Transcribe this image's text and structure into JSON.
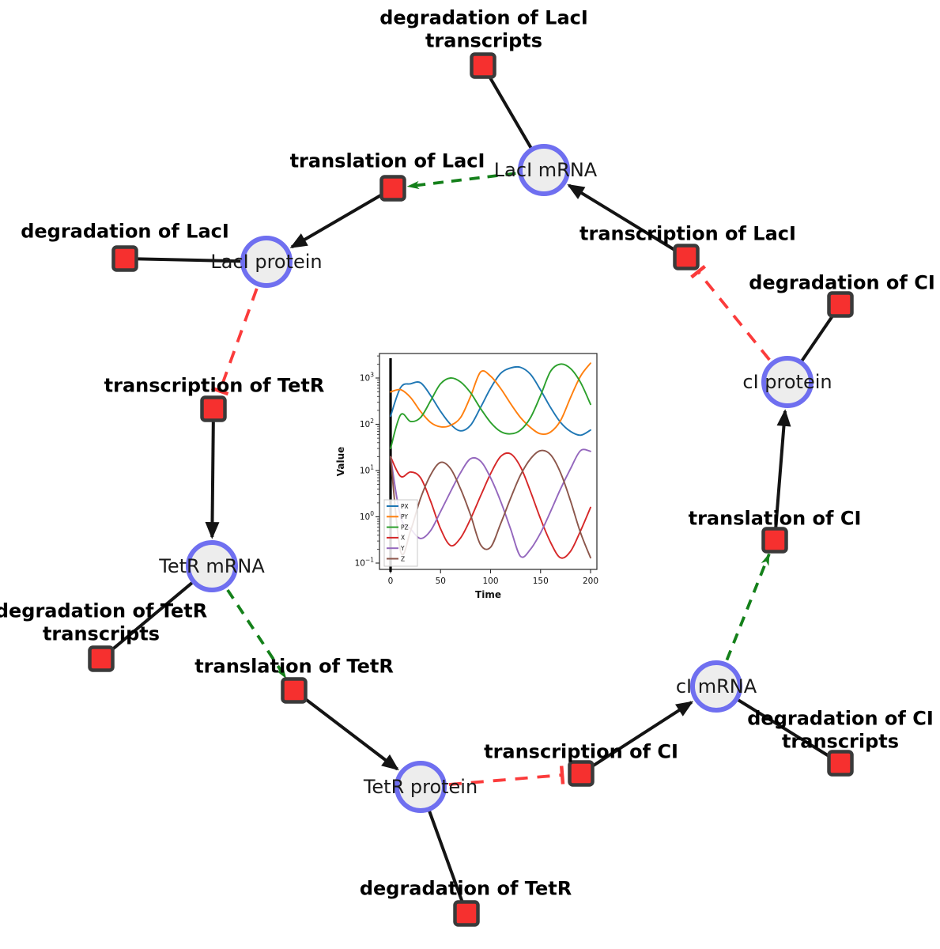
{
  "colors": {
    "node_fill": "#ededed",
    "node_border": "#6f6ff0",
    "reaction_fill": "#f6302f",
    "reaction_border": "#3a3a3a",
    "activation": "#14801a",
    "inhibition": "#fb3b3b",
    "edge_black": "#141414"
  },
  "diagram": {
    "species": [
      {
        "label": "LacI mRNA"
      },
      {
        "label": "LacI protein"
      },
      {
        "label": "TetR mRNA"
      },
      {
        "label": "TetR protein"
      },
      {
        "label": "cI mRNA"
      },
      {
        "label": "cI protein"
      }
    ],
    "reactions": [
      {
        "label": "degradation of LacI\ntranscripts"
      },
      {
        "label": "translation of LacI"
      },
      {
        "label": "transcription of LacI"
      },
      {
        "label": "degradation of LacI"
      },
      {
        "label": "degradation of CI"
      },
      {
        "label": "transcription of TetR"
      },
      {
        "label": "translation of CI"
      },
      {
        "label": "degradation of TetR\ntranscripts"
      },
      {
        "label": "translation of TetR"
      },
      {
        "label": "degradation of CI\ntranscripts"
      },
      {
        "label": "transcription of CI"
      },
      {
        "label": "degradation of TetR"
      }
    ]
  },
  "chart_data": {
    "type": "line",
    "title": "",
    "xlabel": "Time",
    "ylabel": "Value",
    "x_ticks": [
      0,
      50,
      100,
      150,
      200
    ],
    "y_scale": "log",
    "y_tick_exponents": [
      -1,
      0,
      1,
      2,
      3
    ],
    "xlim": [
      -11,
      206
    ],
    "ylim": [
      0.073,
      3400
    ],
    "vline_x": 0,
    "legend_position": "lower left",
    "x": [
      0,
      10,
      20,
      30,
      40,
      50,
      60,
      70,
      80,
      90,
      100,
      110,
      120,
      130,
      140,
      150,
      160,
      170,
      180,
      190,
      200
    ],
    "series": [
      {
        "name": "PX",
        "color": "#1f77b4",
        "values": [
          150,
          620,
          750,
          790,
          420,
          190,
          100,
          72,
          95,
          230,
          600,
          1250,
          1650,
          1700,
          1200,
          550,
          230,
          110,
          70,
          58,
          75
        ]
      },
      {
        "name": "PY",
        "color": "#ff7f0e",
        "values": [
          500,
          560,
          380,
          190,
          110,
          88,
          95,
          140,
          400,
          1350,
          1100,
          600,
          280,
          140,
          85,
          62,
          68,
          120,
          380,
          1100,
          2100
        ]
      },
      {
        "name": "PZ",
        "color": "#2ca02c",
        "values": [
          30,
          160,
          115,
          140,
          320,
          750,
          1000,
          820,
          480,
          220,
          110,
          70,
          62,
          75,
          140,
          420,
          1400,
          2000,
          1600,
          800,
          270
        ]
      },
      {
        "name": "X",
        "color": "#d62728",
        "values": [
          20,
          7.5,
          9.3,
          7.0,
          2.2,
          0.55,
          0.24,
          0.35,
          0.9,
          2.8,
          8.5,
          20,
          23,
          12,
          3.5,
          0.9,
          0.28,
          0.13,
          0.18,
          0.5,
          1.6
        ]
      },
      {
        "name": "Y",
        "color": "#9467bd",
        "values": [
          20,
          1.0,
          0.55,
          0.34,
          0.5,
          1.3,
          3.5,
          9,
          18,
          16,
          7,
          2.2,
          0.55,
          0.14,
          0.2,
          0.45,
          1.3,
          4,
          11,
          27,
          26
        ]
      },
      {
        "name": "Z",
        "color": "#8c564b",
        "values": [
          20,
          0.18,
          0.5,
          2.5,
          8,
          15,
          11,
          4,
          1.1,
          0.25,
          0.22,
          0.7,
          2.5,
          8,
          18,
          27,
          22,
          9,
          2.2,
          0.45,
          0.13
        ]
      }
    ]
  }
}
